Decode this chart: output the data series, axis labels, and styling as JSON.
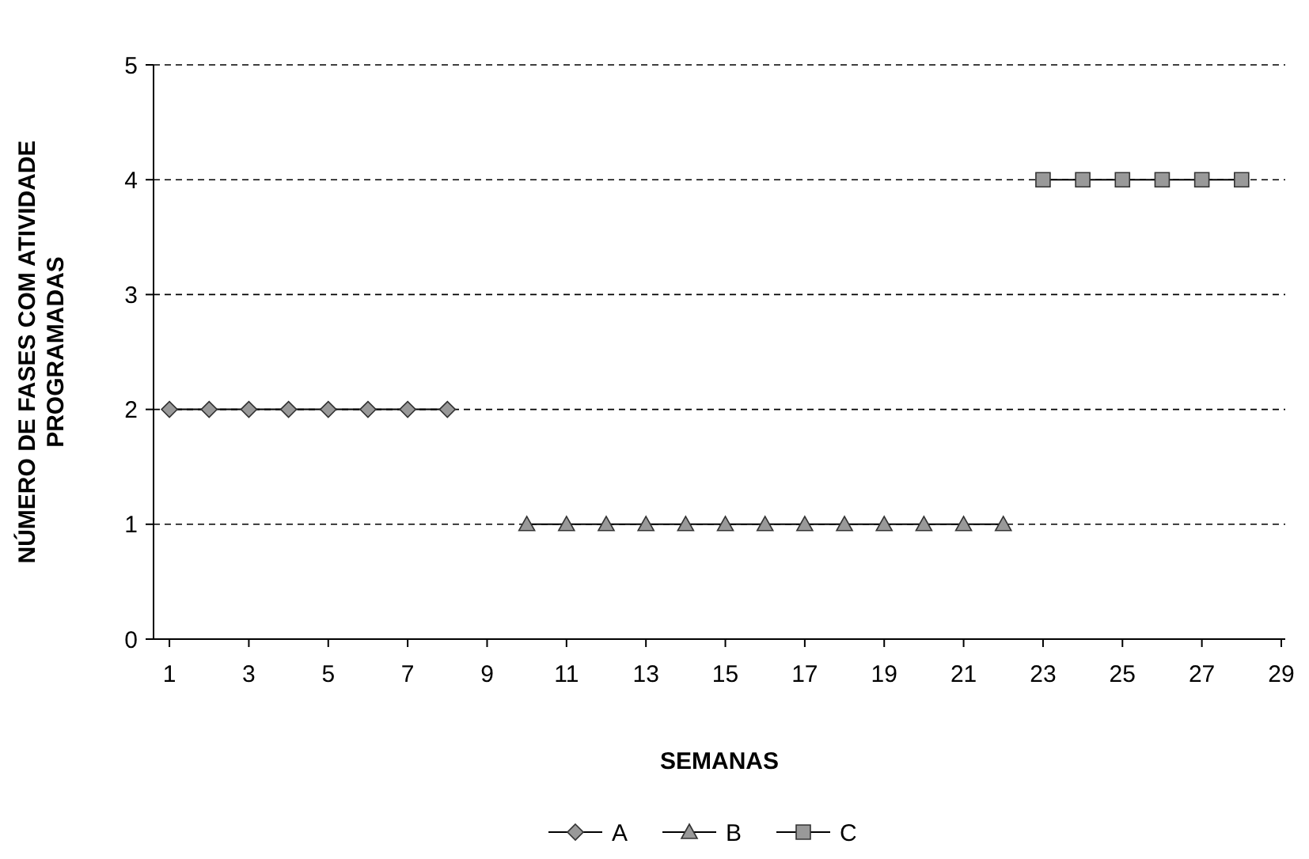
{
  "chart_data": {
    "type": "line",
    "xlabel": "SEMANAS",
    "ylabel": "NÚMERO DE FASES COM ATIVIDADE PROGRAMADAS",
    "xlim": [
      0.6,
      29.1
    ],
    "xticks": [
      1,
      3,
      5,
      7,
      9,
      11,
      13,
      15,
      17,
      19,
      21,
      23,
      25,
      27,
      29
    ],
    "ylim": [
      0,
      5
    ],
    "yticks": [
      0,
      1,
      2,
      3,
      4,
      5
    ],
    "grid": "y",
    "legend": "bottom",
    "series": [
      {
        "name": "A",
        "color": "#999999",
        "marker": "diamond",
        "x": [
          1,
          2,
          3,
          4,
          5,
          6,
          7,
          8
        ],
        "values": [
          2,
          2,
          2,
          2,
          2,
          2,
          2,
          2
        ]
      },
      {
        "name": "B",
        "color": "#999999",
        "marker": "triangle",
        "x": [
          10,
          11,
          12,
          13,
          14,
          15,
          16,
          17,
          18,
          19,
          20,
          21,
          22
        ],
        "values": [
          1,
          1,
          1,
          1,
          1,
          1,
          1,
          1,
          1,
          1,
          1,
          1,
          1
        ]
      },
      {
        "name": "C",
        "color": "#999999",
        "marker": "square",
        "x": [
          23,
          24,
          25,
          26,
          27,
          28
        ],
        "values": [
          4,
          4,
          4,
          4,
          4,
          4
        ]
      }
    ]
  }
}
